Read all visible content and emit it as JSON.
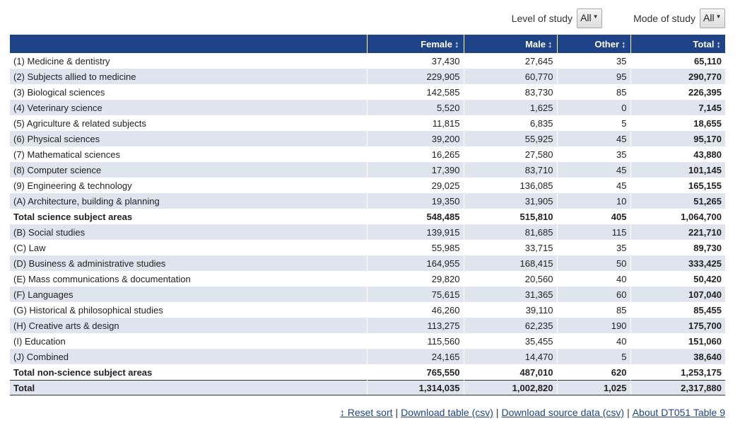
{
  "filters": {
    "level_label": "Level of study",
    "level_value": "All",
    "mode_label": "Mode of study",
    "mode_value": "All"
  },
  "table": {
    "columns": [
      "",
      "Female",
      "Male",
      "Other",
      "Total"
    ],
    "sort_glyph": "↕",
    "rows": [
      {
        "label": "(1) Medicine & dentistry",
        "female": "37,430",
        "male": "27,645",
        "other": "35",
        "total": "65,110",
        "is_total": false
      },
      {
        "label": "(2) Subjects allied to medicine",
        "female": "229,905",
        "male": "60,770",
        "other": "95",
        "total": "290,770",
        "is_total": false
      },
      {
        "label": "(3) Biological sciences",
        "female": "142,585",
        "male": "83,730",
        "other": "85",
        "total": "226,395",
        "is_total": false
      },
      {
        "label": "(4) Veterinary science",
        "female": "5,520",
        "male": "1,625",
        "other": "0",
        "total": "7,145",
        "is_total": false
      },
      {
        "label": "(5) Agriculture & related subjects",
        "female": "11,815",
        "male": "6,835",
        "other": "5",
        "total": "18,655",
        "is_total": false
      },
      {
        "label": "(6) Physical sciences",
        "female": "39,200",
        "male": "55,925",
        "other": "45",
        "total": "95,170",
        "is_total": false
      },
      {
        "label": "(7) Mathematical sciences",
        "female": "16,265",
        "male": "27,580",
        "other": "35",
        "total": "43,880",
        "is_total": false
      },
      {
        "label": "(8) Computer science",
        "female": "17,390",
        "male": "83,710",
        "other": "45",
        "total": "101,145",
        "is_total": false
      },
      {
        "label": "(9) Engineering & technology",
        "female": "29,025",
        "male": "136,085",
        "other": "45",
        "total": "165,155",
        "is_total": false
      },
      {
        "label": "(A) Architecture, building & planning",
        "female": "19,350",
        "male": "31,905",
        "other": "10",
        "total": "51,265",
        "is_total": false
      },
      {
        "label": "Total science subject areas",
        "female": "548,485",
        "male": "515,810",
        "other": "405",
        "total": "1,064,700",
        "is_total": true
      },
      {
        "label": "(B) Social studies",
        "female": "139,915",
        "male": "81,685",
        "other": "115",
        "total": "221,710",
        "is_total": false
      },
      {
        "label": "(C) Law",
        "female": "55,985",
        "male": "33,715",
        "other": "35",
        "total": "89,730",
        "is_total": false
      },
      {
        "label": "(D) Business & administrative studies",
        "female": "164,955",
        "male": "168,415",
        "other": "50",
        "total": "333,425",
        "is_total": false
      },
      {
        "label": "(E) Mass communications & documentation",
        "female": "29,820",
        "male": "20,560",
        "other": "40",
        "total": "50,420",
        "is_total": false
      },
      {
        "label": "(F) Languages",
        "female": "75,615",
        "male": "31,365",
        "other": "60",
        "total": "107,040",
        "is_total": false
      },
      {
        "label": "(G) Historical & philosophical studies",
        "female": "46,260",
        "male": "39,110",
        "other": "85",
        "total": "85,455",
        "is_total": false
      },
      {
        "label": "(H) Creative arts & design",
        "female": "113,275",
        "male": "62,235",
        "other": "190",
        "total": "175,700",
        "is_total": false
      },
      {
        "label": "(I) Education",
        "female": "115,560",
        "male": "35,455",
        "other": "40",
        "total": "151,060",
        "is_total": false
      },
      {
        "label": "(J) Combined",
        "female": "24,165",
        "male": "14,470",
        "other": "5",
        "total": "38,640",
        "is_total": false
      },
      {
        "label": "Total non-science subject areas",
        "female": "765,550",
        "male": "487,010",
        "other": "620",
        "total": "1,253,175",
        "is_total": true
      }
    ],
    "footer": {
      "label": "Total",
      "female": "1,314,035",
      "male": "1,002,820",
      "other": "1,025",
      "total": "2,317,880"
    }
  },
  "links": {
    "reset_sort": "↕ Reset sort",
    "download_table": "Download table (csv)",
    "download_source": "Download source data (csv)",
    "about": "About DT051 Table 9",
    "separator": "|"
  },
  "colors": {
    "header_bg": "#1e4389",
    "stripe_bg": "#dfe4ef",
    "link": "#1e4389"
  }
}
